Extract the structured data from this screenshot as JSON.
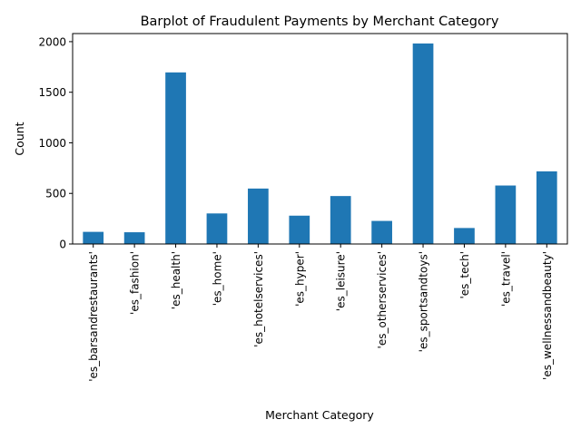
{
  "chart_data": {
    "type": "bar",
    "title": "Barplot of Fraudulent Payments by Merchant Category",
    "xlabel": "Merchant Category",
    "ylabel": "Count",
    "categories": [
      "'es_barsandrestaurants'",
      "'es_fashion'",
      "'es_health'",
      "'es_home'",
      "'es_hotelservices'",
      "'es_hyper'",
      "'es_leisure'",
      "'es_otherservices'",
      "'es_sportsandtoys'",
      "'es_tech'",
      "'es_travel'",
      "'es_wellnessandbeauty'"
    ],
    "values": [
      120,
      116,
      1696,
      302,
      548,
      280,
      474,
      228,
      1982,
      158,
      578,
      718
    ],
    "ylim": [
      0,
      2080
    ],
    "yticks": [
      0,
      500,
      1000,
      1500,
      2000
    ],
    "grid": false,
    "bar_color": "#1f77b4"
  }
}
